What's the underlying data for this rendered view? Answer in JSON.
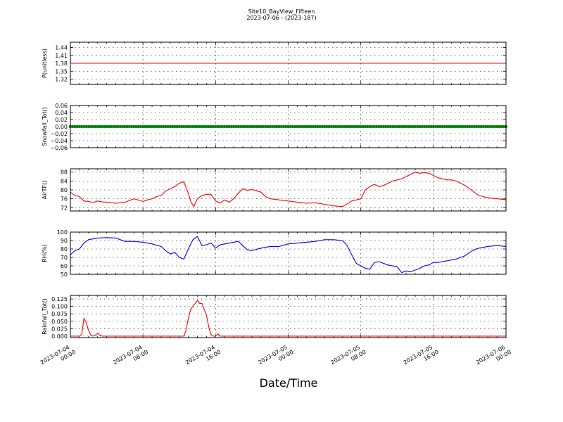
{
  "figure": {
    "title_line1": "Site10_BayView_Fifteen",
    "title_line2": "2023-07-06 - (2023-187)",
    "xlabel": "Date/Time"
  },
  "chart_data": [
    {
      "type": "line",
      "ylabel": "P(unitless)",
      "color": "#ff0000",
      "ylim": [
        1.3,
        1.46
      ],
      "yticks": [
        1.32,
        1.35,
        1.38,
        1.41,
        1.44
      ],
      "ytick_labels": [
        "1.32",
        "1.35",
        "1.38",
        "1.41",
        "1.44"
      ],
      "series": [
        {
          "x": [
            0,
            48
          ],
          "y": [
            1.38,
            1.38
          ]
        }
      ]
    },
    {
      "type": "scatter",
      "ylabel": "Snowfall_Tot()",
      "color": "#008000",
      "ylim": [
        -0.06,
        0.06
      ],
      "yticks": [
        -0.06,
        -0.04,
        -0.02,
        0.0,
        0.02,
        0.04,
        0.06
      ],
      "ytick_labels": [
        "−0.06",
        "−0.04",
        "−0.02",
        "0.00",
        "0.02",
        "0.04",
        "0.06"
      ],
      "series": [
        {
          "x_start": 0,
          "x_end": 48,
          "x_step": 0.25,
          "y_constant": 0.0
        }
      ]
    },
    {
      "type": "line",
      "ylabel": "AirTF()",
      "color": "#ff0000",
      "ylim": [
        70.5,
        89.5
      ],
      "yticks": [
        72,
        76,
        80,
        84,
        88
      ],
      "ytick_labels": [
        "72",
        "76",
        "80",
        "84",
        "88"
      ],
      "series": [
        {
          "x": [
            0,
            0.5,
            1,
            1.5,
            2,
            2.5,
            3,
            3.5,
            4,
            5,
            6,
            7,
            8,
            8.5,
            9,
            9.5,
            10,
            10.5,
            11,
            11.5,
            12,
            12.5,
            13,
            13.3,
            13.6,
            14,
            14.5,
            15,
            15.5,
            16,
            16.5,
            17,
            17.5,
            18,
            18.5,
            19,
            19.5,
            20,
            20.5,
            21,
            21.5,
            22,
            23,
            24,
            25,
            26,
            27,
            28,
            29,
            30,
            31,
            32,
            32.5,
            33,
            33.5,
            34,
            34.5,
            35,
            35.5,
            36,
            36.5,
            37,
            37.5,
            38,
            38.5,
            39,
            39.5,
            40,
            40.5,
            41,
            41.5,
            42,
            42.5,
            43,
            43.5,
            44,
            44.5,
            45,
            46,
            47,
            48
          ],
          "y": [
            79,
            77.5,
            77,
            75,
            74.8,
            74.3,
            75,
            74.6,
            74.5,
            74,
            74.4,
            76,
            74.8,
            75.5,
            76,
            77,
            77.5,
            79.5,
            80.5,
            81.5,
            83,
            83.7,
            78.5,
            74.5,
            72.5,
            76,
            77.5,
            78,
            78,
            75,
            74,
            75.5,
            74.5,
            76,
            78.5,
            80.5,
            79.8,
            80.2,
            79.6,
            79,
            77,
            76,
            75.5,
            75,
            74.5,
            74,
            74.2,
            73.5,
            72.8,
            72.5,
            75,
            76,
            80,
            81.5,
            82.5,
            81.5,
            82,
            83,
            84,
            84.5,
            85,
            86,
            87,
            88,
            87.5,
            87.8,
            87.5,
            86.5,
            85.5,
            85,
            84.5,
            84.5,
            84,
            83,
            82,
            80.5,
            79,
            77.5,
            76.5,
            76,
            75.6
          ]
        }
      ]
    },
    {
      "type": "line",
      "ylabel": "RH(%)",
      "color": "#0000ff",
      "ylim": [
        50,
        100
      ],
      "yticks": [
        50,
        60,
        70,
        80,
        90,
        100
      ],
      "ytick_labels": [
        "50",
        "60",
        "70",
        "80",
        "90",
        "100"
      ],
      "series": [
        {
          "x": [
            0,
            0.5,
            1,
            1.5,
            2,
            3,
            4,
            5,
            6,
            7,
            8,
            9,
            10,
            10.5,
            11,
            11.5,
            12,
            12.5,
            13,
            13.5,
            14,
            14.5,
            15,
            15.5,
            16,
            16.5,
            17,
            17.5,
            18,
            18.5,
            19,
            19.5,
            20,
            21,
            22,
            23,
            24,
            25,
            26,
            27,
            28,
            29,
            30,
            30.5,
            31,
            31.5,
            32,
            32.5,
            33,
            33.5,
            34,
            35,
            35.5,
            36,
            36.5,
            37,
            37.5,
            38,
            38.5,
            39,
            39.5,
            40,
            40.5,
            41,
            41.5,
            42,
            42.5,
            43,
            43.5,
            44,
            44.5,
            45,
            46,
            47,
            48
          ],
          "y": [
            73,
            78,
            80,
            87,
            91,
            93,
            93.5,
            93,
            89,
            89,
            88,
            86,
            83,
            78,
            74,
            76,
            70,
            68,
            80,
            91,
            95,
            84,
            85,
            87,
            81,
            85,
            86,
            87,
            88,
            89,
            84,
            79,
            78,
            81,
            83,
            83,
            86,
            87,
            88,
            89,
            91,
            91,
            90,
            84,
            73,
            63,
            60,
            57,
            56,
            64,
            65,
            61,
            60,
            59,
            52,
            54,
            53,
            55,
            57,
            60,
            61,
            64,
            64,
            65,
            66,
            67,
            68,
            70,
            72,
            76,
            79,
            81,
            83,
            84,
            83
          ]
        }
      ]
    },
    {
      "type": "line",
      "ylabel": "Rainfall_Tot()",
      "color": "#ff0000",
      "ylim": [
        -0.005,
        0.137
      ],
      "yticks": [
        0.0,
        0.025,
        0.05,
        0.075,
        0.1,
        0.125
      ],
      "ytick_labels": [
        "0.000",
        "0.025",
        "0.050",
        "0.075",
        "0.100",
        "0.125"
      ],
      "series": [
        {
          "x": [
            0,
            1,
            1.25,
            1.5,
            1.75,
            2,
            2.25,
            2.5,
            2.75,
            3,
            3.25,
            3.5,
            12.5,
            12.75,
            13,
            13.25,
            13.5,
            13.75,
            14,
            14.25,
            14.5,
            14.75,
            15,
            15.25,
            15.5,
            15.75,
            16,
            16.25,
            16.5,
            48
          ],
          "y": [
            0,
            0,
            0.005,
            0.06,
            0.045,
            0.02,
            0.003,
            0,
            0.003,
            0.01,
            0.003,
            0,
            0,
            0.02,
            0.06,
            0.09,
            0.1,
            0.11,
            0.12,
            0.11,
            0.11,
            0.09,
            0.07,
            0.03,
            0.005,
            0,
            0,
            0.008,
            0,
            0
          ]
        }
      ]
    }
  ],
  "x_axis": {
    "range_hours": [
      0,
      48
    ],
    "ticks": [
      0,
      8,
      16,
      24,
      32,
      40,
      48
    ],
    "tick_labels": [
      [
        "2023-07-04",
        "00:00"
      ],
      [
        "2023-07-04",
        "08:00"
      ],
      [
        "2023-07-04",
        "16:00"
      ],
      [
        "2023-07-05",
        "00:00"
      ],
      [
        "2023-07-05",
        "08:00"
      ],
      [
        "2023-07-05",
        "16:00"
      ],
      [
        "2023-07-06",
        "00:00"
      ]
    ]
  },
  "grid": true
}
